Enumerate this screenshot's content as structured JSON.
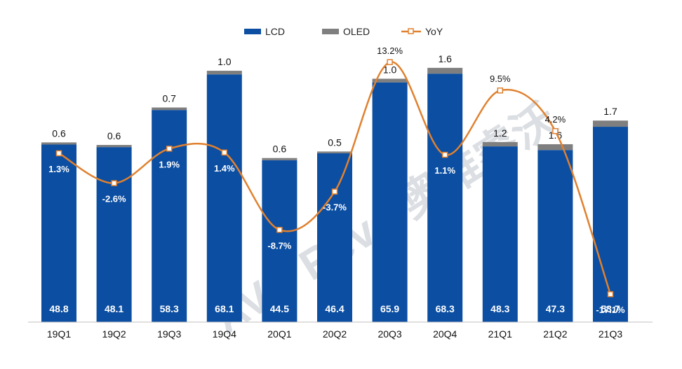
{
  "colors": {
    "lcd": "#0B4EA2",
    "oled": "#7F7F7F",
    "yoy": "#E0812F",
    "axis": "#BFBFBF",
    "watermark": "#9AA3AE"
  },
  "watermark": "AVC Revo 奥维睿沃",
  "chart_data": {
    "type": "bar",
    "stacked": true,
    "categories": [
      "19Q1",
      "19Q2",
      "19Q3",
      "19Q4",
      "20Q1",
      "20Q2",
      "20Q3",
      "20Q4",
      "21Q1",
      "21Q2",
      "21Q3"
    ],
    "series": [
      {
        "name": "LCD",
        "type": "bar",
        "values": [
          48.8,
          48.1,
          58.3,
          68.1,
          44.5,
          46.4,
          65.9,
          68.3,
          48.3,
          47.3,
          53.7
        ]
      },
      {
        "name": "OLED",
        "type": "bar",
        "values": [
          0.6,
          0.6,
          0.7,
          1.0,
          0.6,
          0.5,
          1.0,
          1.6,
          1.2,
          1.6,
          1.7
        ]
      },
      {
        "name": "YoY",
        "type": "line",
        "secondary_axis": true,
        "values": [
          1.3,
          -2.6,
          1.9,
          1.4,
          -8.7,
          -3.7,
          13.2,
          1.1,
          9.5,
          4.2,
          -17.1
        ]
      }
    ],
    "lcd_labels": [
      "48.8",
      "48.1",
      "58.3",
      "68.1",
      "44.5",
      "46.4",
      "65.9",
      "68.3",
      "48.3",
      "47.3",
      "53.7"
    ],
    "oled_labels": [
      "0.6",
      "0.6",
      "0.7",
      "1.0",
      "0.6",
      "0.5",
      "1.0",
      "1.6",
      "1.2",
      "1.6",
      "1.7"
    ],
    "yoy_labels": [
      "1.3%",
      "-2.6%",
      "1.9%",
      "1.4%",
      "-8.7%",
      "-3.7%",
      "13.2%",
      "1.1%",
      "9.5%",
      "4.2%",
      "-17.1%"
    ],
    "legend_position": "top-center",
    "grid": false,
    "ylim": [
      0,
      77
    ],
    "y2lim": [
      -18,
      14
    ]
  }
}
